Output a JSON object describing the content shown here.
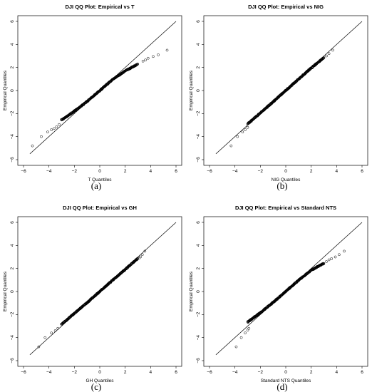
{
  "chart_data": [
    {
      "type": "scatter",
      "title": "DJI QQ Plot: Empirical vs T",
      "xlabel": "T Quantiles",
      "ylabel": "Empirical Quantiles",
      "caption": "(a)",
      "xlim": [
        -6,
        6
      ],
      "ylim": [
        -6,
        6
      ],
      "xticks": [
        -6,
        -4,
        -2,
        0,
        2,
        4,
        6
      ],
      "yticks": [
        -6,
        -4,
        -2,
        0,
        2,
        4,
        6
      ],
      "reference_line": "y = x",
      "sample_line": [
        [
          -3,
          -2.55
        ],
        [
          -2,
          -1.8
        ],
        [
          -1,
          -0.95
        ],
        [
          0,
          0
        ],
        [
          1,
          0.95
        ],
        [
          2,
          1.7
        ],
        [
          3,
          2.3
        ]
      ],
      "outliers": [
        [
          -5.3,
          -4.8
        ],
        [
          -4.6,
          -4.0
        ],
        [
          -4.1,
          -3.6
        ],
        [
          -3.8,
          -3.4
        ],
        [
          -3.6,
          -3.3
        ],
        [
          -3.4,
          -3.15
        ],
        [
          -3.2,
          -2.95
        ],
        [
          3.4,
          2.55
        ],
        [
          3.6,
          2.65
        ],
        [
          3.8,
          2.8
        ],
        [
          4.2,
          2.95
        ],
        [
          4.6,
          3.1
        ],
        [
          5.3,
          3.5
        ]
      ]
    },
    {
      "type": "scatter",
      "title": "DJI QQ Plot: Empirical vs NIG",
      "xlabel": "NIG Quantiles",
      "ylabel": "Empirical Quantiles",
      "caption": "(b)",
      "xlim": [
        -6,
        6
      ],
      "ylim": [
        -6,
        6
      ],
      "xticks": [
        -6,
        -4,
        -2,
        0,
        2,
        4,
        6
      ],
      "yticks": [
        -6,
        -4,
        -2,
        0,
        2,
        4,
        6
      ],
      "reference_line": "y = x",
      "sample_line": [
        [
          -3,
          -2.9
        ],
        [
          -2,
          -1.95
        ],
        [
          -1,
          -0.98
        ],
        [
          0,
          0
        ],
        [
          1,
          0.98
        ],
        [
          2,
          1.95
        ],
        [
          3,
          2.85
        ]
      ],
      "outliers": [
        [
          -4.3,
          -4.8
        ],
        [
          -3.8,
          -4.0
        ],
        [
          -3.4,
          -3.6
        ],
        [
          -3.2,
          -3.4
        ],
        [
          -3.0,
          -3.2
        ],
        [
          2.8,
          2.7
        ],
        [
          3.0,
          2.85
        ],
        [
          3.2,
          3.0
        ],
        [
          3.4,
          3.2
        ],
        [
          3.7,
          3.5
        ]
      ]
    },
    {
      "type": "scatter",
      "title": "DJI QQ Plot: Empirical vs GH",
      "xlabel": "GH Quantiles",
      "ylabel": "Empirical Quantiles",
      "caption": "(c)",
      "xlim": [
        -6,
        6
      ],
      "ylim": [
        -6,
        6
      ],
      "xticks": [
        -6,
        -4,
        -2,
        0,
        2,
        4,
        6
      ],
      "yticks": [
        -6,
        -4,
        -2,
        0,
        2,
        4,
        6
      ],
      "reference_line": "y = x",
      "sample_line": [
        [
          -3,
          -2.85
        ],
        [
          -2,
          -1.9
        ],
        [
          -1,
          -0.97
        ],
        [
          0,
          0
        ],
        [
          1,
          0.97
        ],
        [
          2,
          1.92
        ],
        [
          3,
          2.88
        ]
      ],
      "outliers": [
        [
          -4.8,
          -4.8
        ],
        [
          -4.3,
          -4.0
        ],
        [
          -3.8,
          -3.6
        ],
        [
          -3.5,
          -3.4
        ],
        [
          -3.3,
          -3.2
        ],
        [
          3.1,
          2.9
        ],
        [
          3.2,
          3.0
        ],
        [
          3.35,
          3.2
        ],
        [
          3.55,
          3.5
        ]
      ]
    },
    {
      "type": "scatter",
      "title": "DJI QQ Plot: Empirical vs Standard NTS",
      "xlabel": "Standard NTS Quantiles",
      "ylabel": "Empirical Quantiles",
      "caption": "(d)",
      "xlim": [
        -6,
        6
      ],
      "ylim": [
        -6,
        6
      ],
      "xticks": [
        -6,
        -4,
        -2,
        0,
        2,
        4,
        6
      ],
      "yticks": [
        -6,
        -4,
        -2,
        0,
        2,
        4,
        6
      ],
      "reference_line": "y = x",
      "sample_line": [
        [
          -3,
          -2.65
        ],
        [
          -2,
          -1.85
        ],
        [
          -1,
          -0.95
        ],
        [
          0,
          0
        ],
        [
          1,
          0.98
        ],
        [
          2,
          1.85
        ],
        [
          3,
          2.45
        ]
      ],
      "outliers": [
        [
          -3.9,
          -4.8
        ],
        [
          -3.5,
          -4.0
        ],
        [
          -3.2,
          -3.6
        ],
        [
          -3.0,
          -3.35
        ],
        [
          -2.9,
          -3.2
        ],
        [
          3.2,
          2.6
        ],
        [
          3.4,
          2.75
        ],
        [
          3.6,
          2.85
        ],
        [
          3.9,
          3.0
        ],
        [
          4.2,
          3.2
        ],
        [
          4.6,
          3.5
        ]
      ]
    }
  ]
}
